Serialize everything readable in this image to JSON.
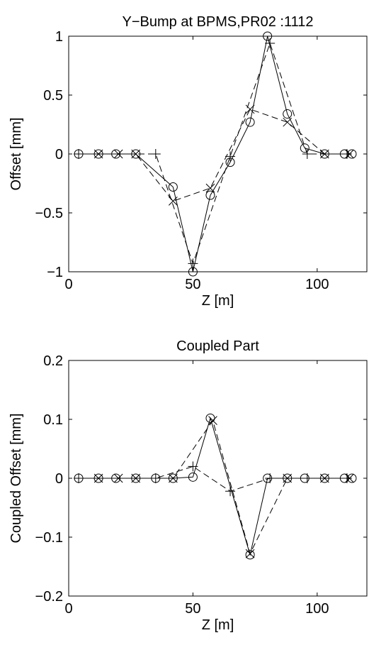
{
  "chart_data": [
    {
      "type": "line",
      "title": "Y−Bump at BPMS,PR02 :1112",
      "xlabel": "Z [m]",
      "ylabel": "Offset [mm]",
      "xlim": [
        0,
        120
      ],
      "ylim": [
        -1,
        1
      ],
      "xticks": [
        0,
        50,
        100
      ],
      "yticks": [
        -1,
        -0.5,
        0,
        0.5,
        1
      ],
      "xtick_labels": [
        "0",
        "50",
        "100"
      ],
      "ytick_labels": [
        "−1",
        "−0.5",
        "0",
        "0.5",
        "1"
      ],
      "grid": false,
      "series": [
        {
          "marker": "circle",
          "line": "solid",
          "x": [
            4,
            12,
            19,
            27,
            42,
            50,
            57,
            65,
            73,
            80,
            88,
            95,
            103,
            111,
            114
          ],
          "y": [
            0,
            0,
            0,
            0,
            -0.28,
            -1.0,
            -0.35,
            -0.07,
            0.27,
            1.0,
            0.34,
            0.05,
            0,
            0,
            0
          ]
        },
        {
          "marker": "x",
          "line": "dashed",
          "x": [
            12,
            20,
            27,
            42,
            57,
            73,
            88,
            103,
            113
          ],
          "y": [
            0,
            0,
            0,
            -0.4,
            -0.29,
            0.38,
            0.27,
            0,
            0
          ]
        },
        {
          "marker": "plus",
          "line": "dashed",
          "x": [
            4,
            35,
            50,
            65,
            81,
            96,
            112
          ],
          "y": [
            0,
            0,
            -0.93,
            -0.02,
            0.94,
            0.0,
            0
          ]
        }
      ]
    },
    {
      "type": "line",
      "title": "Coupled Part",
      "xlabel": "Z [m]",
      "ylabel": "Coupled Offset [mm]",
      "xlim": [
        0,
        120
      ],
      "ylim": [
        -0.2,
        0.2
      ],
      "xticks": [
        0,
        50,
        100
      ],
      "yticks": [
        -0.2,
        -0.1,
        0,
        0.1,
        0.2
      ],
      "xtick_labels": [
        "0",
        "50",
        "100"
      ],
      "ytick_labels": [
        "−0.2",
        "−0.1",
        "0",
        "0.1",
        "0.2"
      ],
      "grid": false,
      "series": [
        {
          "marker": "circle",
          "line": "solid",
          "x": [
            4,
            12,
            19,
            27,
            35,
            42,
            50,
            57,
            73,
            80,
            88,
            95,
            103,
            111,
            114
          ],
          "y": [
            0,
            0,
            0,
            0,
            0,
            0,
            0.002,
            0.102,
            -0.13,
            0.0,
            0,
            0,
            0,
            0,
            0
          ]
        },
        {
          "marker": "x",
          "line": "dashed",
          "x": [
            12,
            20,
            27,
            42,
            58,
            73,
            88,
            103,
            113
          ],
          "y": [
            0,
            0,
            0,
            0,
            0.098,
            -0.128,
            0,
            0,
            0
          ]
        },
        {
          "marker": "plus",
          "line": "dashed",
          "x": [
            4,
            35,
            50,
            65,
            81,
            96,
            112
          ],
          "y": [
            0,
            0,
            0.02,
            -0.022,
            0.0,
            0,
            0
          ]
        }
      ]
    }
  ]
}
